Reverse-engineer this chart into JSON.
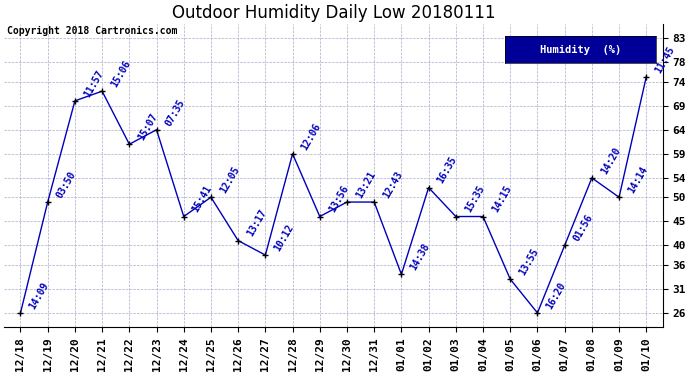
{
  "title": "Outdoor Humidity Daily Low 20180111",
  "copyright": "Copyright 2018 Cartronics.com",
  "legend_label": "Humidity  (%)",
  "x_labels": [
    "12/18",
    "12/19",
    "12/20",
    "12/21",
    "12/22",
    "12/23",
    "12/24",
    "12/25",
    "12/26",
    "12/27",
    "12/28",
    "12/29",
    "12/30",
    "12/31",
    "01/01",
    "01/02",
    "01/03",
    "01/04",
    "01/05",
    "01/06",
    "01/07",
    "01/08",
    "01/09",
    "01/10"
  ],
  "y_values": [
    26,
    49,
    70,
    72,
    61,
    64,
    46,
    50,
    41,
    38,
    59,
    46,
    49,
    49,
    34,
    52,
    46,
    46,
    33,
    26,
    40,
    54,
    50,
    75
  ],
  "point_labels": [
    "14:09",
    "03:50",
    "11:57",
    "15:06",
    "15:07",
    "07:35",
    "15:41",
    "12:05",
    "13:17",
    "10:12",
    "12:06",
    "13:56",
    "13:21",
    "12:43",
    "14:38",
    "16:35",
    "15:35",
    "14:15",
    "13:55",
    "16:20",
    "01:56",
    "14:20",
    "14:14",
    "11:45"
  ],
  "line_color": "#0000bb",
  "marker_color": "#000000",
  "label_color": "#0000bb",
  "background_color": "#ffffff",
  "grid_color": "#aaaacc",
  "y_ticks": [
    26,
    31,
    36,
    40,
    45,
    50,
    54,
    59,
    64,
    69,
    74,
    78,
    83
  ],
  "ylim": [
    23,
    86
  ],
  "xlim": [
    -0.6,
    23.6
  ],
  "title_fontsize": 12,
  "tick_fontsize": 8,
  "annot_fontsize": 7,
  "legend_bg": "#000099",
  "legend_fg": "#ffffff"
}
